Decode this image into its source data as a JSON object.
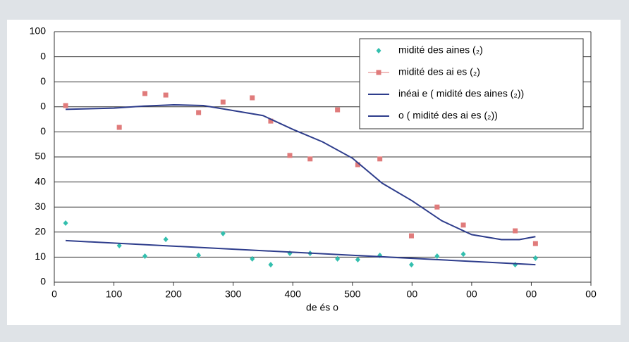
{
  "chart_data": {
    "type": "scatter",
    "x_label": "de és o",
    "xlim": [
      0,
      900
    ],
    "xticks": [
      0,
      100,
      200,
      300,
      400,
      500,
      {
        "value": 600,
        "label": "00"
      },
      {
        "value": 700,
        "label": "00"
      },
      {
        "value": 800,
        "label": "00"
      },
      {
        "value": 900,
        "label": "00"
      }
    ],
    "ylim": [
      0,
      100
    ],
    "yticks": [
      0,
      10,
      20,
      30,
      40,
      50,
      {
        "value": 60,
        "label": "0"
      },
      {
        "value": 70,
        "label": "0"
      },
      {
        "value": 80,
        "label": "0"
      },
      {
        "value": 90,
        "label": "0"
      },
      100
    ],
    "grid": true,
    "series": [
      {
        "name": "midité des aines (₂)",
        "color": "#33bfae",
        "marker": "diamond",
        "x": [
          19,
          109,
          152,
          187,
          242,
          283,
          332,
          363,
          395,
          429,
          475,
          509,
          546,
          599,
          642,
          686,
          773,
          807
        ],
        "values": [
          23.6,
          14.6,
          10.4,
          17.1,
          10.7,
          19.4,
          9.3,
          7,
          11.5,
          11.5,
          9.3,
          9,
          10.7,
          7,
          10.4,
          11.2,
          7,
          9.6
        ]
      },
      {
        "name": "midité des ai es (₂)",
        "color": "#e07b7b",
        "marker": "square",
        "x": [
          19,
          109,
          152,
          187,
          242,
          283,
          332,
          363,
          395,
          429,
          475,
          509,
          546,
          599,
          642,
          686,
          773,
          807
        ],
        "values": [
          70.5,
          61.8,
          75.3,
          74.7,
          67.7,
          71.9,
          73.6,
          64.3,
          50.6,
          49.2,
          68.8,
          46.9,
          49.2,
          18.5,
          30,
          22.8,
          20.5,
          15.4
        ]
      },
      {
        "name": "inéai e ( midité des aines (₂))",
        "color": "#2e3d8c",
        "marker": "line",
        "x": [
          19,
          807
        ],
        "values": [
          16.6,
          7
        ]
      },
      {
        "name": "o ( midité des ai es (₂))",
        "color": "#2e3d8c",
        "marker": "line",
        "x": [
          19,
          100,
          150,
          200,
          250,
          300,
          350,
          400,
          450,
          500,
          550,
          600,
          650,
          700,
          750,
          780,
          807
        ],
        "values": [
          69,
          69.5,
          70.3,
          70.8,
          70.5,
          68.5,
          66.5,
          61,
          56,
          49.5,
          39.5,
          32.5,
          24.5,
          19,
          17,
          17,
          18.2
        ]
      }
    ]
  }
}
